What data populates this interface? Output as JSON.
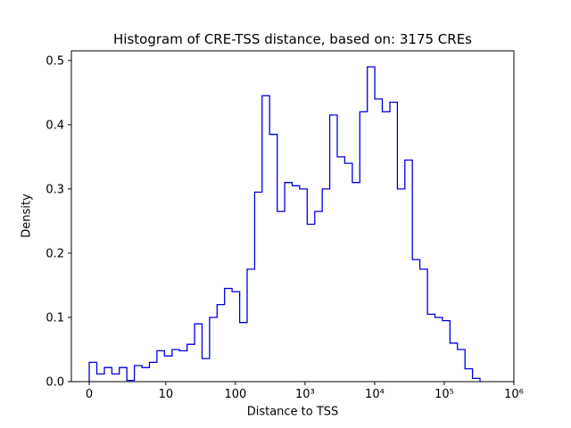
{
  "chart_data": {
    "type": "bar",
    "style": "step-histogram",
    "title": "Histogram of CRE-TSS distance, based on: 3175 CREs",
    "xlabel": "Distance to TSS",
    "ylabel": "Density",
    "n_samples": 3175,
    "line_color": "#0000e0",
    "x_scale": "symlog",
    "ylim": [
      0,
      0.515
    ],
    "y_ticks": [
      {
        "value": 0.0,
        "label": "0.0"
      },
      {
        "value": 0.1,
        "label": "0.1"
      },
      {
        "value": 0.2,
        "label": "0.2"
      },
      {
        "value": 0.3,
        "label": "0.3"
      },
      {
        "value": 0.4,
        "label": "0.4"
      },
      {
        "value": 0.5,
        "label": "0.5"
      }
    ],
    "x_ticks": [
      {
        "value": 0,
        "label": "0"
      },
      {
        "value": 10,
        "label": "10"
      },
      {
        "value": 100,
        "label": "100"
      },
      {
        "value": 1000,
        "label": "10³"
      },
      {
        "value": 10000,
        "label": "10⁴"
      },
      {
        "value": 100000,
        "label": "10⁵"
      },
      {
        "value": 1000000,
        "label": "10⁶"
      }
    ],
    "bin_edges": [
      0,
      1.02,
      1.31,
      1.68,
      2.15,
      2.76,
      3.54,
      4.54,
      5.82,
      7.46,
      9.56,
      12.3,
      15.7,
      20.2,
      25.9,
      33.2,
      42.5,
      54.5,
      69.9,
      89.6,
      114.9,
      147.3,
      188.8,
      242.1,
      310.3,
      397.9,
      510.1,
      654,
      838.4,
      1074.9,
      1378,
      1766.6,
      2264.8,
      2903.5,
      3722.3,
      4772.1,
      6117.9,
      7843.3,
      10055,
      12891,
      16526,
      21187,
      27162,
      34822,
      44643,
      57233,
      73374,
      94066,
      120593,
      154602,
      198202,
      254102,
      325764
    ],
    "densities": [
      0.03,
      0.012,
      0.022,
      0.012,
      0.022,
      0.002,
      0.025,
      0.022,
      0.03,
      0.048,
      0.04,
      0.05,
      0.048,
      0.058,
      0.09,
      0.036,
      0.1,
      0.12,
      0.145,
      0.14,
      0.092,
      0.175,
      0.295,
      0.445,
      0.385,
      0.265,
      0.31,
      0.305,
      0.3,
      0.245,
      0.265,
      0.3,
      0.415,
      0.35,
      0.34,
      0.31,
      0.42,
      0.49,
      0.44,
      0.42,
      0.435,
      0.3,
      0.345,
      0.19,
      0.175,
      0.105,
      0.1,
      0.095,
      0.06,
      0.05,
      0.02,
      0.005
    ]
  }
}
